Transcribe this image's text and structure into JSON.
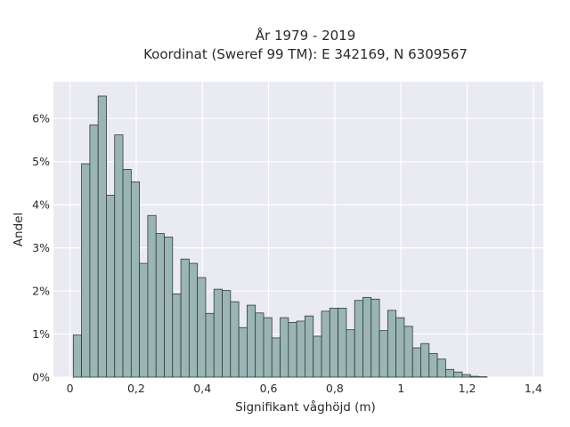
{
  "chart_data": {
    "type": "bar",
    "title": "År 1979 - 2019",
    "subtitle": "Koordinat (Sweref 99 TM): E 342169, N 6309567",
    "xlabel": "Signifikant våghöjd (m)",
    "ylabel": "Andel",
    "xlim": [
      -0.05,
      1.43
    ],
    "ylim": [
      0,
      6.85
    ],
    "x_ticks": [
      0,
      0.2,
      0.4,
      0.6,
      0.8,
      1.0,
      1.2,
      1.4
    ],
    "x_tick_labels": [
      "0",
      "0,2",
      "0,4",
      "0,6",
      "0,8",
      "1",
      "1,2",
      "1,4"
    ],
    "y_ticks": [
      0,
      1,
      2,
      3,
      4,
      5,
      6
    ],
    "y_tick_labels": [
      "0%",
      "1%",
      "2%",
      "3%",
      "4%",
      "5%",
      "6%"
    ],
    "bin_width": 0.025,
    "bin_start": 0.01,
    "values": [
      0.98,
      4.95,
      5.85,
      6.52,
      4.22,
      5.62,
      4.82,
      4.53,
      2.64,
      3.75,
      3.33,
      3.25,
      1.93,
      2.74,
      2.64,
      2.31,
      1.48,
      2.04,
      2.01,
      1.75,
      1.15,
      1.67,
      1.49,
      1.38,
      0.91,
      1.38,
      1.27,
      1.3,
      1.42,
      0.95,
      1.53,
      1.6,
      1.6,
      1.1,
      1.78,
      1.85,
      1.81,
      1.08,
      1.55,
      1.38,
      1.18,
      0.68,
      0.78,
      0.55,
      0.42,
      0.18,
      0.12,
      0.06,
      0.02,
      0.01
    ],
    "grid": true,
    "bar_color": "#9bb5b5",
    "edge_color": "#2e3b3b",
    "background_color": "#eaeaf2",
    "grid_color": "#ffffff"
  }
}
